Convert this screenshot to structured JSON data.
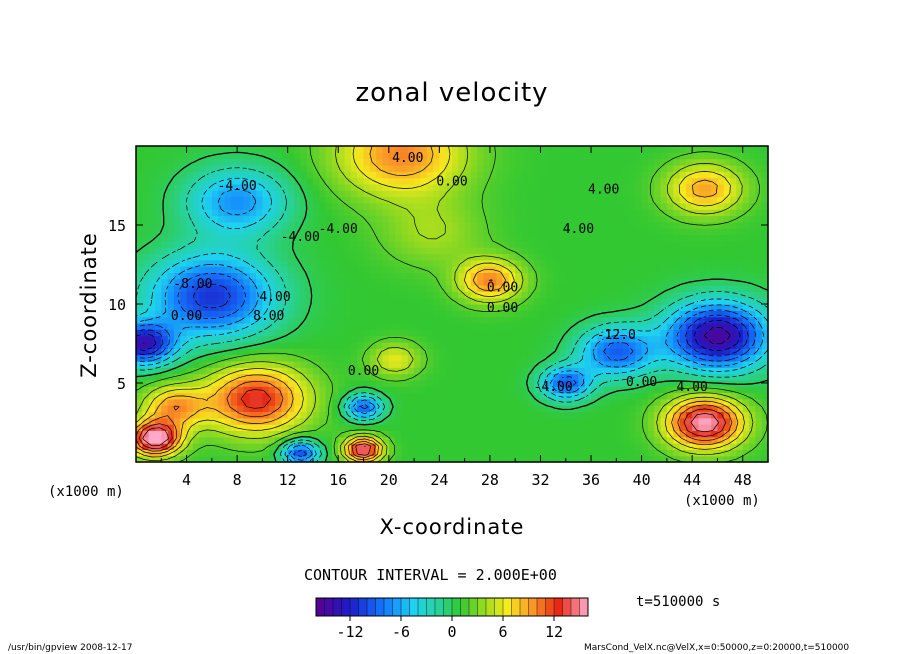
{
  "chart_data": {
    "type": "heatmap",
    "title": "zonal velocity",
    "xlabel": "X-coordinate",
    "ylabel": "Z-coordinate",
    "x_unit_left": "(x1000 m)",
    "x_unit_right": "(x1000 m)",
    "x_ticks": [
      "4",
      "8",
      "12",
      "16",
      "20",
      "24",
      "28",
      "32",
      "36",
      "40",
      "44",
      "48"
    ],
    "y_ticks": [
      "5",
      "10",
      "15"
    ],
    "xlim": [
      0,
      50
    ],
    "ylim": [
      0,
      20
    ],
    "contour_interval_label": "CONTOUR INTERVAL = 2.000E+00",
    "contour_labels": [
      "4.00",
      "0.00",
      "4.00",
      "-4.00",
      "-4.00",
      "-8.00",
      "0.00",
      "4.00",
      "8.00",
      "0.00",
      "-4.00",
      "4.00",
      "0.00",
      "0.00",
      "-12.0",
      "4.00",
      "0.00",
      "-4.00"
    ],
    "colorbar": {
      "min": -16,
      "max": 16,
      "ticks": [
        "-12",
        "-6",
        "0",
        "6",
        "12"
      ],
      "tick_values": [
        -12,
        -6,
        0,
        6,
        12
      ]
    },
    "time_label": "t=510000 s",
    "features": [
      {
        "x": 21,
        "z": 19.5,
        "u": 9,
        "r": 5
      },
      {
        "x": 45,
        "z": 17.3,
        "u": 8,
        "r": 3
      },
      {
        "x": 8,
        "z": 16.5,
        "u": -8,
        "r": 4
      },
      {
        "x": 28,
        "z": 11.5,
        "u": 9,
        "r": 2.5
      },
      {
        "x": 6,
        "z": 10.5,
        "u": -12,
        "r": 5
      },
      {
        "x": 0.5,
        "z": 7.5,
        "u": -14,
        "r": 2.5
      },
      {
        "x": 46,
        "z": 8,
        "u": -16,
        "r": 4
      },
      {
        "x": 38,
        "z": 7,
        "u": -10,
        "r": 3
      },
      {
        "x": 9.5,
        "z": 4,
        "u": 12,
        "r": 4
      },
      {
        "x": 20.5,
        "z": 6.5,
        "u": 5,
        "r": 2
      },
      {
        "x": 18,
        "z": 3.5,
        "u": -10,
        "r": 1.5
      },
      {
        "x": 34,
        "z": 5,
        "u": -10,
        "r": 2
      },
      {
        "x": 45,
        "z": 2.5,
        "u": 15,
        "r": 3
      },
      {
        "x": 1.5,
        "z": 1.5,
        "u": 16,
        "r": 2
      },
      {
        "x": 18,
        "z": 0.8,
        "u": 14,
        "r": 1.5
      },
      {
        "x": 13,
        "z": 0.6,
        "u": -11,
        "r": 1.5
      },
      {
        "x": 3,
        "z": 3.5,
        "u": 8,
        "r": 2.5
      },
      {
        "x": 23.5,
        "z": 14.5,
        "u": 3,
        "r": 4
      }
    ]
  },
  "footer": {
    "left": "/usr/bin/gpview  2008-12-17",
    "right": "MarsCond_VelX.nc@VelX,x=0:50000,z=0:20000,t=510000"
  }
}
